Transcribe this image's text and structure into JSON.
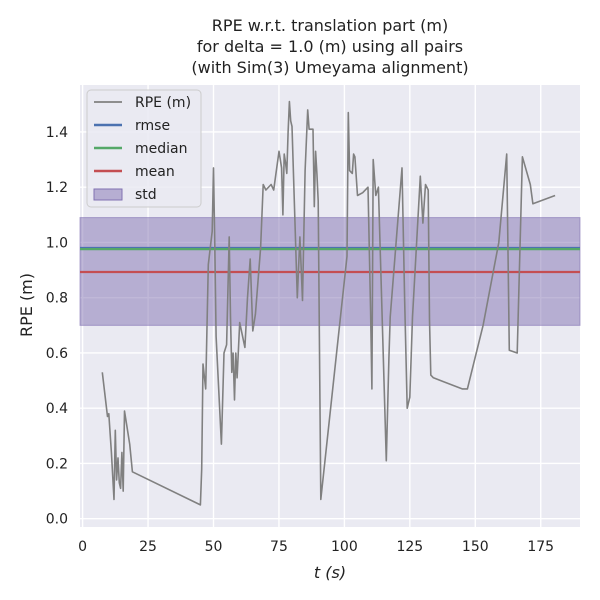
{
  "chart_data": {
    "type": "line",
    "title": [
      "RPE w.r.t. translation part (m)",
      "for delta = 1.0 (m) using all pairs",
      "(with Sim(3) Umeyama alignment)"
    ],
    "xlabel": "t (s)",
    "ylabel": "RPE (m)",
    "xlim": [
      -1,
      190
    ],
    "ylim": [
      -0.03,
      1.57
    ],
    "xticks": [
      0,
      25,
      50,
      75,
      100,
      125,
      150,
      175
    ],
    "yticks": [
      0.0,
      0.2,
      0.4,
      0.6,
      0.8,
      1.0,
      1.2,
      1.4
    ],
    "xtick_labels": [
      "0",
      "25",
      "50",
      "75",
      "100",
      "125",
      "150",
      "175"
    ],
    "ytick_labels": [
      "0.0",
      "0.2",
      "0.4",
      "0.6",
      "0.8",
      "1.0",
      "1.2",
      "1.4"
    ],
    "grid": true,
    "legend_position": "top-left",
    "series": [
      {
        "name": "RPE (m)",
        "color": "#808080",
        "x": [
          7.5,
          9.0,
          9.5,
          10.0,
          11.0,
          12.0,
          12.5,
          13.0,
          13.5,
          14.0,
          14.5,
          15.0,
          15.5,
          16.0,
          18.0,
          19.0,
          45.0,
          45.5,
          46.0,
          47.0,
          48.0,
          49.5,
          50.0,
          50.5,
          51.0,
          53.0,
          54.0,
          55.0,
          56.0,
          56.5,
          57.0,
          57.5,
          58.0,
          58.5,
          59.0,
          60.0,
          62.0,
          63.0,
          64.0,
          65.0,
          66.0,
          68.0,
          69.0,
          70.0,
          72.0,
          73.0,
          75.0,
          76.0,
          76.5,
          77.0,
          77.5,
          78.0,
          78.5,
          79.0,
          79.5,
          80.0,
          82.0,
          83.0,
          84.0,
          85.0,
          86.0,
          86.5,
          88.0,
          88.5,
          89.0,
          89.5,
          90.0,
          91.0,
          101.0,
          101.5,
          102.0,
          103.0,
          103.5,
          104.0,
          105.0,
          107.0,
          109.0,
          110.0,
          110.5,
          111.0,
          112.0,
          113.0,
          116.0,
          117.0,
          117.5,
          122.0,
          123.0,
          124.0,
          125.0,
          126.0,
          129.0,
          130.0,
          131.0,
          132.0,
          132.5,
          133.0,
          134.0,
          145.0,
          147.0,
          153.0,
          159.0,
          162.0,
          163.0,
          166.0,
          168.0,
          171.0,
          172.0,
          180.5
        ],
        "y": [
          0.53,
          0.41,
          0.37,
          0.38,
          0.24,
          0.07,
          0.32,
          0.14,
          0.22,
          0.13,
          0.11,
          0.24,
          0.1,
          0.39,
          0.27,
          0.17,
          0.05,
          0.18,
          0.56,
          0.47,
          0.92,
          1.04,
          1.27,
          0.99,
          0.66,
          0.27,
          0.6,
          0.63,
          1.02,
          0.73,
          0.53,
          0.6,
          0.43,
          0.6,
          0.51,
          0.71,
          0.62,
          0.8,
          0.94,
          0.68,
          0.74,
          0.98,
          1.21,
          1.19,
          1.21,
          1.19,
          1.33,
          1.27,
          1.1,
          1.32,
          1.29,
          1.25,
          1.4,
          1.51,
          1.44,
          1.42,
          0.8,
          1.02,
          0.79,
          1.26,
          1.48,
          1.41,
          1.41,
          1.13,
          1.33,
          1.25,
          1.15,
          0.07,
          0.95,
          1.47,
          1.26,
          1.25,
          1.32,
          1.31,
          1.17,
          1.18,
          1.2,
          0.75,
          0.47,
          1.3,
          1.17,
          1.2,
          0.21,
          0.58,
          0.73,
          1.27,
          0.8,
          0.4,
          0.44,
          0.73,
          1.24,
          1.07,
          1.21,
          1.19,
          0.72,
          0.52,
          0.51,
          0.47,
          0.47,
          0.7,
          1.0,
          1.32,
          0.61,
          0.6,
          1.31,
          1.21,
          1.14,
          1.17
        ]
      },
      {
        "name": "rmse",
        "color": "#4c72b0",
        "value": 0.98
      },
      {
        "name": "median",
        "color": "#55a868",
        "value": 0.976
      },
      {
        "name": "mean",
        "color": "#c44e52",
        "value": 0.893
      },
      {
        "name": "std",
        "color": "#8172b2",
        "lower": 0.7,
        "upper": 1.09
      }
    ]
  }
}
